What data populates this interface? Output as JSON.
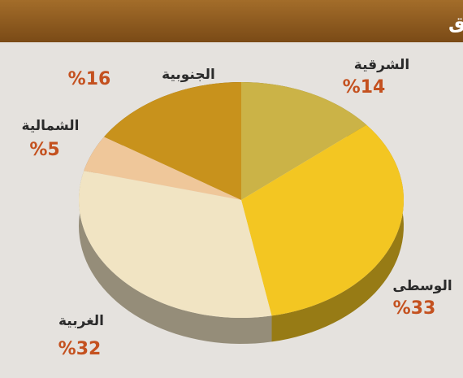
{
  "chart_data": {
    "type": "pie",
    "title": "توزيع استهلاك الاسمنت على المناطق",
    "categories": [
      "الشرقية",
      "الوسطى",
      "الغربية",
      "الشمالية",
      "الجنوبية"
    ],
    "values": [
      14,
      33,
      32,
      5,
      16
    ],
    "value_labels": [
      "%14",
      "%33",
      "%32",
      "%5",
      "%16"
    ],
    "colors": [
      "#cbb347",
      "#f3c622",
      "#f1e4c3",
      "#efc79a",
      "#c8921c"
    ]
  }
}
